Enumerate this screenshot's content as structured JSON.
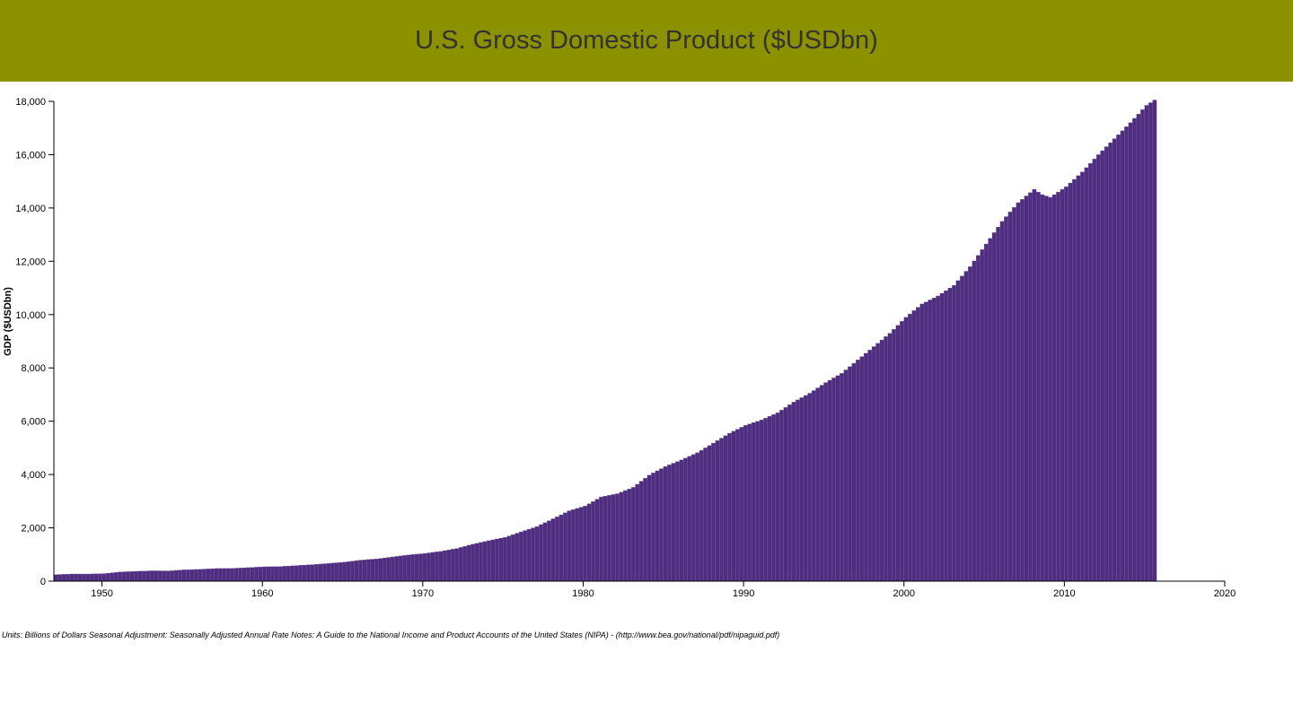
{
  "header": {
    "title": "U.S. Gross Domestic Product ($USDbn)"
  },
  "notes": "Units: Billions of Dollars Seasonal Adjustment: Seasonally Adjusted Annual Rate Notes: A Guide to the National Income and Product Accounts of the United States (NIPA) - (http://www.bea.gov/national/pdf/nipaguid.pdf)",
  "chart_data": {
    "type": "bar",
    "title": "U.S. Gross Domestic Product ($USDbn)",
    "xlabel": "",
    "ylabel": "GDP ($USDbn)",
    "xlim": [
      1947,
      2020
    ],
    "ylim": [
      0,
      18000
    ],
    "x_ticks": [
      1950,
      1960,
      1970,
      1980,
      1990,
      2000,
      2010,
      2020
    ],
    "y_ticks": [
      0,
      2000,
      4000,
      6000,
      8000,
      10000,
      12000,
      14000,
      16000,
      18000
    ],
    "x_tick_labels": [
      "1950",
      "1960",
      "1970",
      "1980",
      "1990",
      "2000",
      "2010",
      "2020"
    ],
    "y_tick_labels": [
      "0",
      "2,000",
      "4,000",
      "6,000",
      "8,000",
      "10,000",
      "12,000",
      "14,000",
      "16,000",
      "18,000"
    ],
    "bar_color": "#4f2e80",
    "bar_stroke": "#7b5fa8",
    "grid": false,
    "frequency": "quarterly",
    "x": [
      1947,
      1948,
      1949,
      1950,
      1951,
      1952,
      1953,
      1954,
      1955,
      1956,
      1957,
      1958,
      1959,
      1960,
      1961,
      1962,
      1963,
      1964,
      1965,
      1966,
      1967,
      1968,
      1969,
      1970,
      1971,
      1972,
      1973,
      1974,
      1975,
      1976,
      1977,
      1978,
      1979,
      1980,
      1981,
      1982,
      1983,
      1984,
      1985,
      1986,
      1987,
      1988,
      1989,
      1990,
      1991,
      1992,
      1993,
      1994,
      1995,
      1996,
      1997,
      1998,
      1999,
      2000,
      2001,
      2002,
      2003,
      2004,
      2005,
      2006,
      2007,
      2008,
      2008.5,
      2009,
      2010,
      2011,
      2012,
      2013,
      2014,
      2015,
      2015.5
    ],
    "values": [
      245,
      270,
      268,
      285,
      345,
      370,
      390,
      385,
      425,
      445,
      475,
      480,
      510,
      540,
      550,
      585,
      620,
      665,
      715,
      790,
      835,
      910,
      985,
      1040,
      1120,
      1225,
      1390,
      1520,
      1645,
      1850,
      2050,
      2340,
      2640,
      2820,
      3160,
      3280,
      3520,
      3980,
      4300,
      4550,
      4820,
      5180,
      5550,
      5850,
      6050,
      6320,
      6720,
      7050,
      7450,
      7800,
      8300,
      8800,
      9300,
      9900,
      10400,
      10700,
      11100,
      11800,
      12650,
      13500,
      14200,
      14700,
      14500,
      14400,
      14800,
      15350,
      16000,
      16600,
      17200,
      17850,
      18050
    ]
  }
}
